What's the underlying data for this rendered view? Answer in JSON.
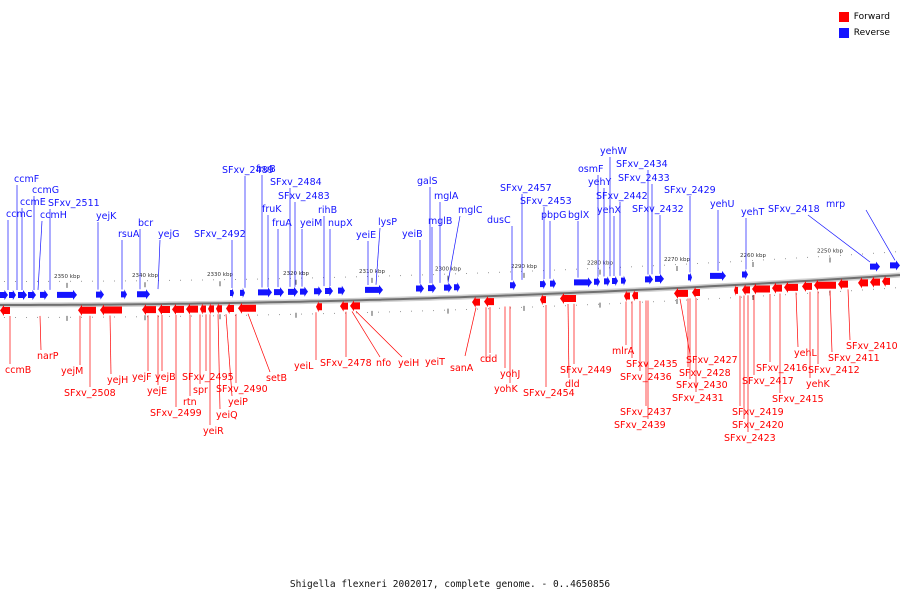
{
  "legend": [
    {
      "label": "Forward",
      "color": "#ff0000"
    },
    {
      "label": "Reverse",
      "color": "#1414ff"
    }
  ],
  "caption": "Shigella flexneri 2002017, complete genome. - 0..4650856",
  "colors": {
    "forward": "#ff0000",
    "reverse": "#1414ff",
    "backbone": "#808080",
    "tick": "#999999"
  },
  "ticks": [
    "2350 kbp",
    "2340 kbp",
    "2330 kbp",
    "2320 kbp",
    "2310 kbp",
    "2300 kbp",
    "2290 kbp",
    "2280 kbp",
    "2270 kbp",
    "2260 kbp",
    "2250 kbp"
  ],
  "reverse_genes": [
    "ccmF",
    "ccmG",
    "ccmE",
    "ccmC",
    "SFxv_2511",
    "ccmH",
    "yejK",
    "rsuA",
    "bcr",
    "yejG",
    "SFxv_2492",
    "SFxv_2489",
    "fruB",
    "fruK",
    "fruA",
    "SFxv_2484",
    "SFxv_2483",
    "yeiM",
    "rihB",
    "nupX",
    "yeiE",
    "lysP",
    "yeiB",
    "galS",
    "mglB",
    "mglA",
    "mglC",
    "dusC",
    "SFxv_2457",
    "SFxv_2453",
    "pbpG",
    "bglX",
    "osmF",
    "yehY",
    "yehW",
    "yehX",
    "SFxv_2442",
    "SFxv_2434",
    "SFxv_2433",
    "SFxv_2432",
    "SFxv_2429",
    "yehU",
    "yehT",
    "SFxv_2418",
    "mrp"
  ],
  "forward_genes": [
    "ccmB",
    "narP",
    "yejM",
    "SFxv_2508",
    "yejH",
    "yejF",
    "yejE",
    "yejB",
    "SFxv_2499",
    "rtn",
    "spr",
    "SFxv_2495",
    "yeiR",
    "yeiQ",
    "yeiP",
    "SFxv_2490",
    "setB",
    "yeiL",
    "SFxv_2478",
    "nfo",
    "yeiH",
    "yeiT",
    "sanA",
    "cdd",
    "yohJ",
    "yohK",
    "SFxv_2454",
    "dld",
    "SFxv_2449",
    "mlrA",
    "SFxv_2435",
    "SFxv_2436",
    "SFxv_2437",
    "SFxv_2439",
    "SFxv_2427",
    "SFxv_2428",
    "SFxv_2430",
    "SFxv_2431",
    "SFxv_2419",
    "SFxv_2420",
    "SFxv_2423",
    "SFxv_2417",
    "SFxv_2416",
    "SFxv_2415",
    "yehL",
    "yehK",
    "SFxv_2412",
    "SFxv_2411",
    "SFxv_2410"
  ]
}
